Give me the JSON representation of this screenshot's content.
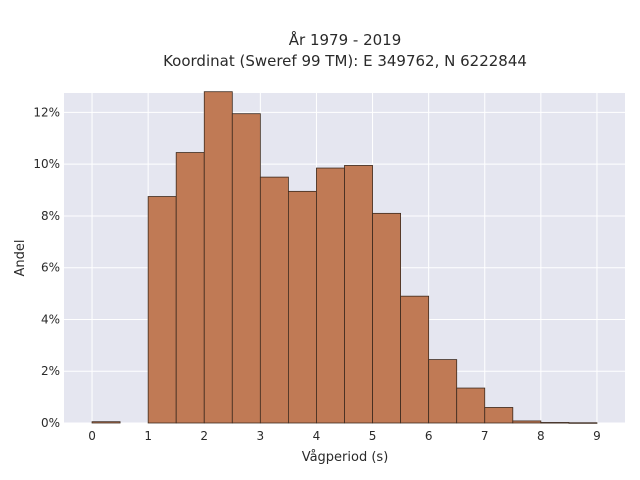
{
  "chart_data": {
    "type": "bar",
    "title_line1": "År 1979 - 2019",
    "title_line2": "Koordinat (Sweref 99 TM): E 349762, N 6222844",
    "xlabel": "Vågperiod (s)",
    "ylabel": "Andel",
    "xlim": [
      -0.5,
      9.5
    ],
    "ylim": [
      0,
      0.1275
    ],
    "x_ticks": [
      0,
      1,
      2,
      3,
      4,
      5,
      6,
      7,
      8,
      9
    ],
    "x_tick_labels": [
      "0",
      "1",
      "2",
      "3",
      "4",
      "5",
      "6",
      "7",
      "8",
      "9"
    ],
    "y_ticks": [
      0,
      0.02,
      0.04,
      0.06,
      0.08,
      0.1,
      0.12
    ],
    "y_tick_labels": [
      "0%",
      "2%",
      "4%",
      "6%",
      "8%",
      "10%",
      "12%"
    ],
    "bin_width": 0.5,
    "bins": [
      {
        "start": 0.0,
        "value": 0.0005
      },
      {
        "start": 0.5,
        "value": 0.0
      },
      {
        "start": 1.0,
        "value": 0.0875
      },
      {
        "start": 1.5,
        "value": 0.1045
      },
      {
        "start": 2.0,
        "value": 0.128
      },
      {
        "start": 2.5,
        "value": 0.1195
      },
      {
        "start": 3.0,
        "value": 0.095
      },
      {
        "start": 3.5,
        "value": 0.0895
      },
      {
        "start": 4.0,
        "value": 0.0985
      },
      {
        "start": 4.5,
        "value": 0.0995
      },
      {
        "start": 5.0,
        "value": 0.081
      },
      {
        "start": 5.5,
        "value": 0.049
      },
      {
        "start": 6.0,
        "value": 0.0245
      },
      {
        "start": 6.5,
        "value": 0.0135
      },
      {
        "start": 7.0,
        "value": 0.006
      },
      {
        "start": 7.5,
        "value": 0.0008
      },
      {
        "start": 8.0,
        "value": 0.0002
      },
      {
        "start": 8.5,
        "value": 0.0001
      }
    ],
    "grid": true,
    "colors": {
      "bar_fill": "#c07a55",
      "bar_stroke": "#3d2a1e",
      "plot_bg": "#e5e6f0",
      "grid": "#ffffff"
    }
  }
}
